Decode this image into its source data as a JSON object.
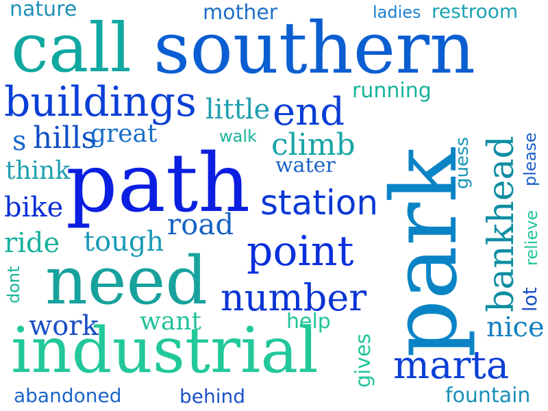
{
  "words": [
    {
      "key": "nature",
      "text": "nature",
      "color": "#1e90b8"
    },
    {
      "key": "mother",
      "text": "mother",
      "color": "#1e6fc7"
    },
    {
      "key": "ladies",
      "text": "ladies",
      "color": "#1a7fd1"
    },
    {
      "key": "restroom",
      "text": "restroom",
      "color": "#1aa3b0"
    },
    {
      "key": "call",
      "text": "call",
      "color": "#10a8a0"
    },
    {
      "key": "southern",
      "text": "southern",
      "color": "#0b5ed1"
    },
    {
      "key": "buildings",
      "text": "buildings",
      "color": "#0a3fd6"
    },
    {
      "key": "little",
      "text": "little",
      "color": "#1e9fb0"
    },
    {
      "key": "end",
      "text": "end",
      "color": "#0a3fd6"
    },
    {
      "key": "running",
      "text": "running",
      "color": "#16b39a"
    },
    {
      "key": "s",
      "text": "s",
      "color": "#1668c8"
    },
    {
      "key": "hills",
      "text": "hills",
      "color": "#0f4fc4"
    },
    {
      "key": "great",
      "text": "great",
      "color": "#1a6ec9"
    },
    {
      "key": "walk",
      "text": "walk",
      "color": "#18b59a"
    },
    {
      "key": "climb",
      "text": "climb",
      "color": "#16a4a6"
    },
    {
      "key": "think",
      "text": "think",
      "color": "#1fa0b0"
    },
    {
      "key": "water",
      "text": "water",
      "color": "#1a62c6"
    },
    {
      "key": "path",
      "text": "path",
      "color": "#0a1fe0"
    },
    {
      "key": "station",
      "text": "station",
      "color": "#0a38d4"
    },
    {
      "key": "bike",
      "text": "bike",
      "color": "#0a2fd6"
    },
    {
      "key": "road",
      "text": "road",
      "color": "#1762c4"
    },
    {
      "key": "ride",
      "text": "ride",
      "color": "#18b09c"
    },
    {
      "key": "tough",
      "text": "tough",
      "color": "#1a9ab8"
    },
    {
      "key": "point",
      "text": "point",
      "color": "#0a2fdc"
    },
    {
      "key": "dont",
      "text": "dont",
      "color": "#16b39a"
    },
    {
      "key": "need",
      "text": "need",
      "color": "#18a29e"
    },
    {
      "key": "number",
      "text": "number",
      "color": "#0a34d4"
    },
    {
      "key": "work",
      "text": "work",
      "color": "#1a4ec6"
    },
    {
      "key": "want",
      "text": "want",
      "color": "#22c09a"
    },
    {
      "key": "help",
      "text": "help",
      "color": "#22c49a"
    },
    {
      "key": "industrial",
      "text": "industrial",
      "color": "#22c89a"
    },
    {
      "key": "gives",
      "text": "gives",
      "color": "#22c49a"
    },
    {
      "key": "abandoned",
      "text": "abandoned",
      "color": "#1b66c9"
    },
    {
      "key": "behind",
      "text": "behind",
      "color": "#1b52c9"
    },
    {
      "key": "park",
      "text": "park",
      "color": "#0b84c6"
    },
    {
      "key": "guess",
      "text": "guess",
      "color": "#1596b6"
    },
    {
      "key": "bankhead",
      "text": "bankhead",
      "color": "#0f8ea2"
    },
    {
      "key": "please",
      "text": "please",
      "color": "#1a5fc8"
    },
    {
      "key": "relieve",
      "text": "relieve",
      "color": "#20c49a"
    },
    {
      "key": "lot",
      "text": "lot",
      "color": "#1a50c6"
    },
    {
      "key": "nice",
      "text": "nice",
      "color": "#137fc1"
    },
    {
      "key": "marta",
      "text": "marta",
      "color": "#0a3fd6"
    },
    {
      "key": "fountain",
      "text": "fountain",
      "color": "#1790b8"
    }
  ]
}
